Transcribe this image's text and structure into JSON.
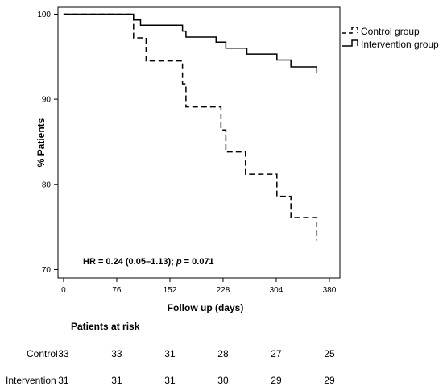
{
  "chart_data": {
    "type": "line",
    "subtype": "kaplan-meier step plot",
    "xlabel": "Follow up (days)",
    "ylabel": "% Patients",
    "xlim": [
      -8,
      395
    ],
    "ylim": [
      69,
      100.8
    ],
    "xticks": [
      0,
      76,
      152,
      228,
      304,
      380
    ],
    "yticks": [
      70,
      80,
      90,
      100
    ],
    "grid": false,
    "legend_position": "top-right, outside plot",
    "annotation": {
      "prefix": "HR = 0.24 (0.05–1.13); ",
      "p_label": "p",
      "suffix": " = 0.071"
    },
    "series": [
      {
        "name": "Control group",
        "line_style": "dashed",
        "color": "#000000",
        "points": [
          [
            0,
            100
          ],
          [
            100,
            100
          ],
          [
            100,
            97.2
          ],
          [
            118,
            97.2
          ],
          [
            118,
            94.5
          ],
          [
            170,
            94.5
          ],
          [
            170,
            91.8
          ],
          [
            175,
            91.8
          ],
          [
            175,
            89.1
          ],
          [
            225,
            89.1
          ],
          [
            225,
            86.4
          ],
          [
            232,
            86.4
          ],
          [
            232,
            83.8
          ],
          [
            260,
            83.8
          ],
          [
            260,
            81.2
          ],
          [
            305,
            81.2
          ],
          [
            305,
            78.6
          ],
          [
            325,
            78.6
          ],
          [
            325,
            76.1
          ],
          [
            362,
            76.1
          ],
          [
            362,
            73.4
          ]
        ]
      },
      {
        "name": "Intervention group",
        "line_style": "solid",
        "color": "#000000",
        "points": [
          [
            0,
            100
          ],
          [
            100,
            100
          ],
          [
            100,
            99.3
          ],
          [
            110,
            99.3
          ],
          [
            110,
            98.7
          ],
          [
            170,
            98.7
          ],
          [
            170,
            98.0
          ],
          [
            175,
            98.0
          ],
          [
            175,
            97.3
          ],
          [
            218,
            97.3
          ],
          [
            218,
            96.7
          ],
          [
            232,
            96.7
          ],
          [
            232,
            96.0
          ],
          [
            262,
            96.0
          ],
          [
            262,
            95.3
          ],
          [
            305,
            95.3
          ],
          [
            305,
            94.6
          ],
          [
            325,
            94.6
          ],
          [
            325,
            93.8
          ],
          [
            362,
            93.8
          ],
          [
            362,
            93.1
          ]
        ]
      }
    ]
  },
  "risk_table": {
    "title": "Patients at risk",
    "rows": [
      {
        "label": "Control",
        "values": [
          "33",
          "33",
          "31",
          "28",
          "27",
          "25"
        ]
      },
      {
        "label": "Intervention",
        "values": [
          "31",
          "31",
          "31",
          "30",
          "29",
          "29"
        ]
      }
    ]
  }
}
